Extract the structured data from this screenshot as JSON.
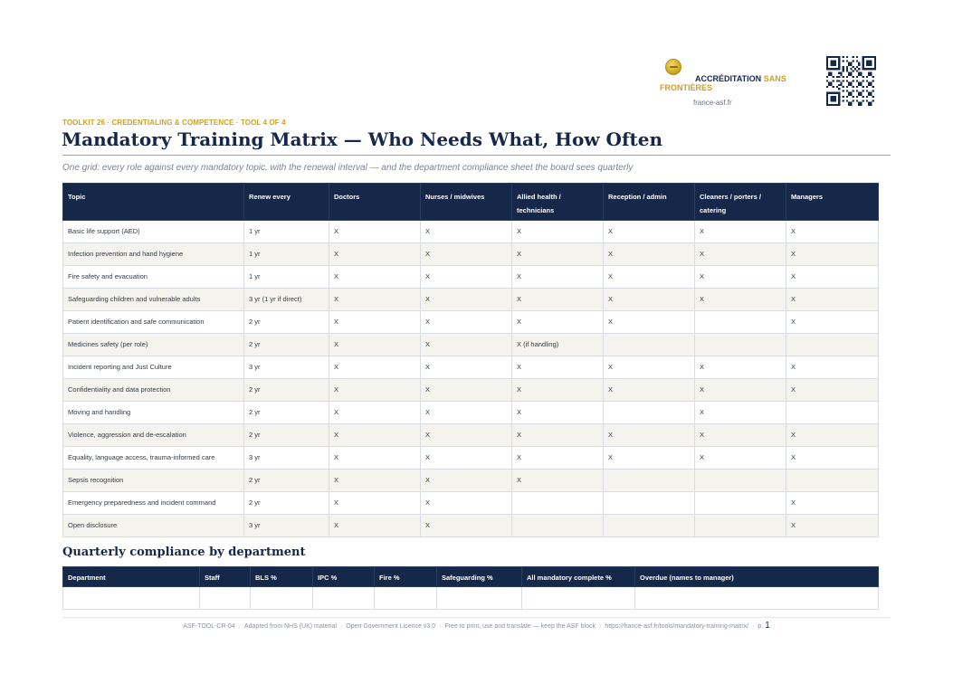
{
  "header": {
    "org_name_line1": "ACCRÉDITATION",
    "org_name_sans": "SANS",
    "org_name_line2": "FRONTIÈRES",
    "org_url": "france-asf.fr"
  },
  "kicker": "TOOLKIT 26 · CREDENTIALING & COMPETENCE · TOOL 4 OF 4",
  "title": "Mandatory Training Matrix — Who Needs What, How Often",
  "subtitle": "One grid: every role against every mandatory topic, with the renewal interval — and the department compliance sheet the board sees quarterly",
  "matrix": {
    "columns": [
      "Topic",
      "Renew every",
      "Doctors",
      "Nurses / midwives",
      "Allied health / technicians",
      "Reception / admin",
      "Cleaners / porters / catering",
      "Managers"
    ],
    "rows": [
      [
        "Basic life support (AED)",
        "1 yr",
        "X",
        "X",
        "X",
        "X",
        "X",
        "X"
      ],
      [
        "Infection prevention and hand hygiene",
        "1 yr",
        "X",
        "X",
        "X",
        "X",
        "X",
        "X"
      ],
      [
        "Fire safety and evacuation",
        "1 yr",
        "X",
        "X",
        "X",
        "X",
        "X",
        "X"
      ],
      [
        "Safeguarding children and vulnerable adults",
        "3 yr (1 yr if direct)",
        "X",
        "X",
        "X",
        "X",
        "X",
        "X"
      ],
      [
        "Patient identification and safe communication",
        "2 yr",
        "X",
        "X",
        "X",
        "X",
        "",
        "X"
      ],
      [
        "Medicines safety (per role)",
        "2 yr",
        "X",
        "X",
        "X (if handling)",
        "",
        "",
        ""
      ],
      [
        "Incident reporting and Just Culture",
        "3 yr",
        "X",
        "X",
        "X",
        "X",
        "X",
        "X"
      ],
      [
        "Confidentiality and data protection",
        "2 yr",
        "X",
        "X",
        "X",
        "X",
        "X",
        "X"
      ],
      [
        "Moving and handling",
        "2 yr",
        "X",
        "X",
        "X",
        "",
        "X",
        ""
      ],
      [
        "Violence, aggression and de-escalation",
        "2 yr",
        "X",
        "X",
        "X",
        "X",
        "X",
        "X"
      ],
      [
        "Equality, language access, trauma-informed care",
        "3 yr",
        "X",
        "X",
        "X",
        "X",
        "X",
        "X"
      ],
      [
        "Sepsis recognition",
        "2 yr",
        "X",
        "X",
        "X",
        "",
        "",
        ""
      ],
      [
        "Emergency preparedness and incident command",
        "2 yr",
        "X",
        "X",
        "",
        "",
        "",
        "X"
      ],
      [
        "Open disclosure",
        "3 yr",
        "X",
        "X",
        "",
        "",
        "",
        "X"
      ]
    ]
  },
  "compliance": {
    "title": "Quarterly compliance by department",
    "columns": [
      "Department",
      "Staff",
      "BLS %",
      "IPC %",
      "Fire %",
      "Safeguarding %",
      "All mandatory complete %",
      "Overdue (names to manager)"
    ],
    "rows": [
      [
        "",
        "",
        "",
        "",
        "",
        "",
        "",
        ""
      ]
    ]
  },
  "footer": {
    "items": [
      "ASF-TOOL-CR-04",
      "Adapted from NHS (UK) material",
      "Open Government Licence v3.0",
      "Free to print, use and translate — keep the ASF block",
      "https://france-asf.fr/tools/mandatory-training-matrix/"
    ],
    "page_prefix": "p.",
    "page_number": "1"
  },
  "colors": {
    "navy": "#16284a",
    "gold": "#c9a227",
    "stripe": "#f4f3ee"
  }
}
